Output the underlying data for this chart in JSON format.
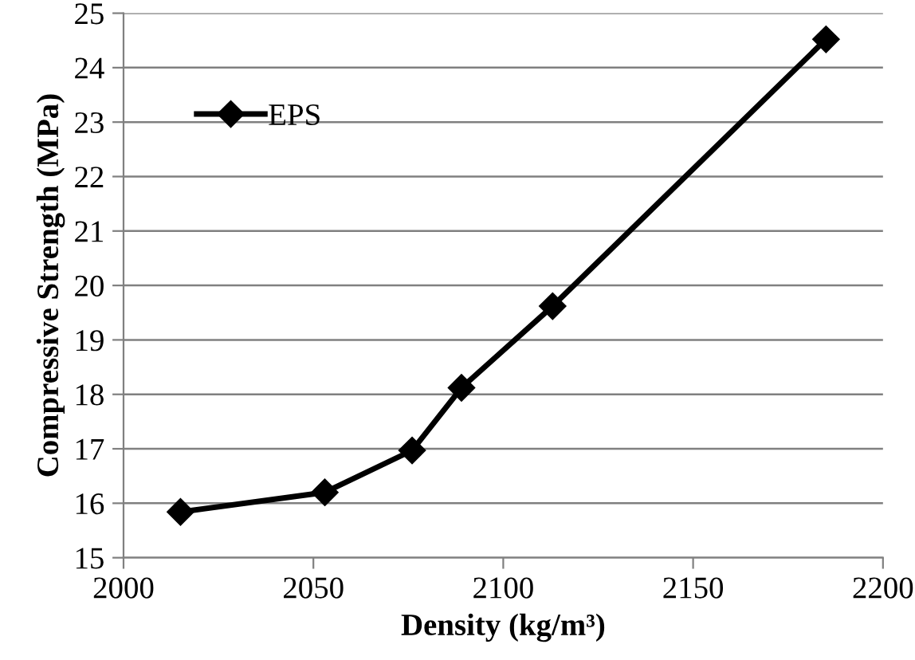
{
  "chart_data": {
    "type": "line",
    "xlabel": "Density (kg/m³)",
    "ylabel": "Compressive Strength (MPa)",
    "x": [
      2015,
      2053,
      2076,
      2089,
      2113,
      2185
    ],
    "series": [
      {
        "name": "EPS",
        "color": "#000000",
        "values": [
          15.84,
          16.2,
          16.97,
          18.12,
          19.62,
          24.52
        ]
      }
    ],
    "xlim": [
      2000,
      2200
    ],
    "xticks": [
      2000,
      2050,
      2100,
      2150,
      2200
    ],
    "ylim": [
      15,
      25
    ],
    "yticks": [
      15,
      16,
      17,
      18,
      19,
      20,
      21,
      22,
      23,
      24,
      25
    ],
    "grid": "y",
    "legend": "top left",
    "marker": "diamond",
    "line_style": "solid"
  }
}
